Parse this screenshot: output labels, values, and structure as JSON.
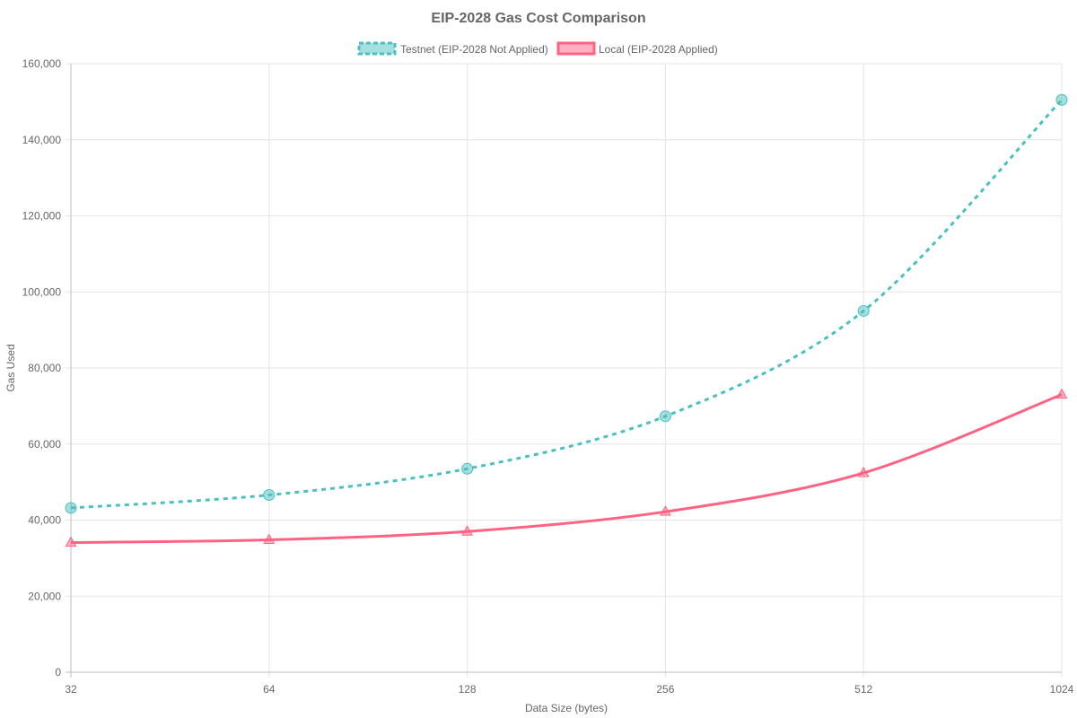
{
  "chart_data": {
    "type": "line",
    "title": "EIP-2028 Gas Cost Comparison",
    "xlabel": "Data Size (bytes)",
    "ylabel": "Gas Used",
    "categories": [
      "32",
      "64",
      "128",
      "256",
      "512",
      "1024"
    ],
    "x_scale": "log2",
    "ylim": [
      0,
      160000
    ],
    "yticks": [
      "0",
      "20,000",
      "40,000",
      "60,000",
      "80,000",
      "100,000",
      "120,000",
      "140,000",
      "160,000"
    ],
    "ytick_values": [
      0,
      20000,
      40000,
      60000,
      80000,
      100000,
      120000,
      140000,
      160000
    ],
    "grid": true,
    "legend_position": "top-center",
    "series": [
      {
        "name": "Testnet (EIP-2028 Not Applied)",
        "values": [
          43200,
          46600,
          53500,
          67300,
          95000,
          150500
        ],
        "color": "#4bc0c0",
        "fill": "rgba(75,192,192,0.5)",
        "line_style": "dashed",
        "marker": "circle"
      },
      {
        "name": "Local (EIP-2028 Applied)",
        "values": [
          34100,
          34800,
          37000,
          42200,
          52400,
          73000
        ],
        "color": "#ff6384",
        "fill": "rgba(255,99,132,0.5)",
        "line_style": "solid",
        "marker": "triangle"
      }
    ]
  }
}
